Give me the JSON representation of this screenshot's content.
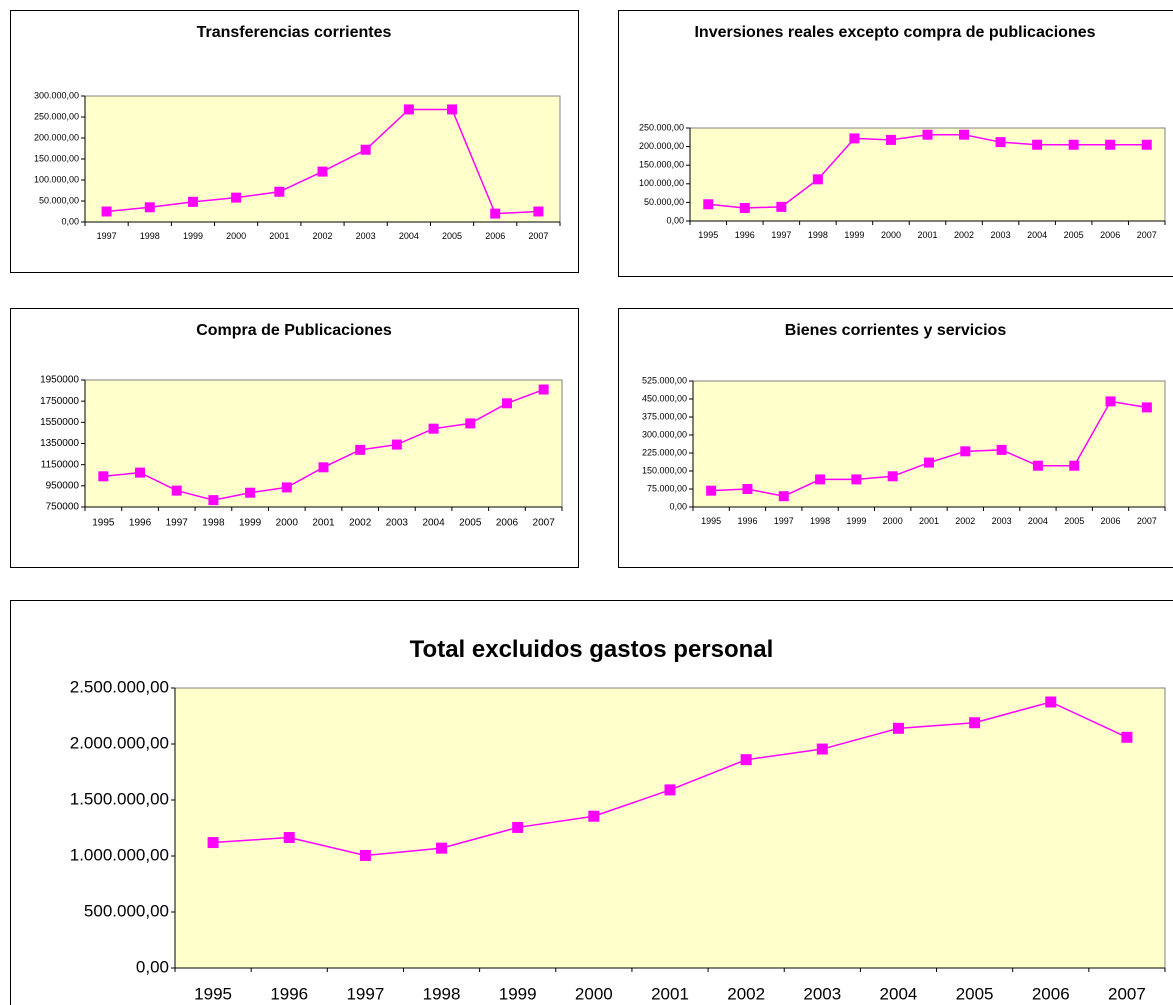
{
  "chart_data": [
    {
      "type": "line",
      "title": "Transferencias corrientes",
      "categories": [
        "1997",
        "1998",
        "1999",
        "2000",
        "2001",
        "2002",
        "2003",
        "2004",
        "2005",
        "2006",
        "2007"
      ],
      "series": [
        {
          "color": "#ff00ff",
          "values": [
            25000,
            35000,
            48000,
            58000,
            72000,
            120000,
            172000,
            268000,
            268000,
            20000,
            25000
          ]
        }
      ],
      "ylim": [
        0,
        300000
      ],
      "yticks": [
        {
          "value": 0,
          "label": "0,00"
        },
        {
          "value": 50000,
          "label": "50.000,00"
        },
        {
          "value": 100000,
          "label": "100.000,00"
        },
        {
          "value": 150000,
          "label": "150.000,00"
        },
        {
          "value": 200000,
          "label": "200.000,00"
        },
        {
          "value": 250000,
          "label": "250.000,00"
        },
        {
          "value": 300000,
          "label": "300.000,00"
        }
      ],
      "grid": false
    },
    {
      "type": "line",
      "title": "Inversiones reales excepto compra de publicaciones",
      "categories": [
        "1995",
        "1996",
        "1997",
        "1998",
        "1999",
        "2000",
        "2001",
        "2002",
        "2003",
        "2004",
        "2005",
        "2006",
        "2007"
      ],
      "series": [
        {
          "color": "#ff00ff",
          "values": [
            45000,
            35000,
            38000,
            112000,
            222000,
            218000,
            232000,
            232000,
            212000,
            205000,
            205000,
            205000,
            205000
          ]
        }
      ],
      "ylim": [
        0,
        250000
      ],
      "yticks": [
        {
          "value": 0,
          "label": "0,00"
        },
        {
          "value": 50000,
          "label": "50.000,00"
        },
        {
          "value": 100000,
          "label": "100.000,00"
        },
        {
          "value": 150000,
          "label": "150.000,00"
        },
        {
          "value": 200000,
          "label": "200.000,00"
        },
        {
          "value": 250000,
          "label": "250.000,00"
        }
      ],
      "grid": false
    },
    {
      "type": "line",
      "title": "Compra de Publicaciones",
      "categories": [
        "1995",
        "1996",
        "1997",
        "1998",
        "1999",
        "2000",
        "2001",
        "2002",
        "2003",
        "2004",
        "2005",
        "2006",
        "2007"
      ],
      "series": [
        {
          "color": "#ff00ff",
          "values": [
            1040000,
            1075000,
            905000,
            815000,
            885000,
            935000,
            1125000,
            1290000,
            1340000,
            1490000,
            1540000,
            1730000,
            1860000
          ]
        }
      ],
      "ylim": [
        750000,
        1950000
      ],
      "yticks": [
        750000,
        950000,
        1150000,
        1350000,
        1550000,
        1750000,
        1950000
      ],
      "grid": false
    },
    {
      "type": "line",
      "title": "Bienes corrientes y servicios",
      "categories": [
        "1995",
        "1996",
        "1997",
        "1998",
        "1999",
        "2000",
        "2001",
        "2002",
        "2003",
        "2004",
        "2005",
        "2006",
        "2007"
      ],
      "series": [
        {
          "color": "#ff00ff",
          "values": [
            68000,
            75000,
            45000,
            115000,
            115000,
            128000,
            185000,
            232000,
            238000,
            172000,
            172000,
            440000,
            415000
          ]
        }
      ],
      "ylim": [
        0,
        525000
      ],
      "yticks": [
        {
          "value": 0,
          "label": "0,00"
        },
        {
          "value": 75000,
          "label": "75.000,00"
        },
        {
          "value": 150000,
          "label": "150.000,00"
        },
        {
          "value": 225000,
          "label": "225.000,00"
        },
        {
          "value": 300000,
          "label": "300.000,00"
        },
        {
          "value": 375000,
          "label": "375.000,00"
        },
        {
          "value": 450000,
          "label": "450.000,00"
        },
        {
          "value": 525000,
          "label": "525.000,00"
        }
      ],
      "grid": false
    },
    {
      "type": "line",
      "title": "Total excluidos gastos personal",
      "categories": [
        "1995",
        "1996",
        "1997",
        "1998",
        "1999",
        "2000",
        "2001",
        "2002",
        "2003",
        "2004",
        "2005",
        "2006",
        "2007"
      ],
      "series": [
        {
          "color": "#ff00ff",
          "values": [
            1120000,
            1165000,
            1005000,
            1070000,
            1255000,
            1355000,
            1590000,
            1860000,
            1955000,
            2140000,
            2190000,
            2375000,
            2060000
          ]
        }
      ],
      "ylim": [
        0,
        2500000
      ],
      "yticks": [
        {
          "value": 0,
          "label": "0,00"
        },
        {
          "value": 500000,
          "label": "500.000,00"
        },
        {
          "value": 1000000,
          "label": "1.000.000,00"
        },
        {
          "value": 1500000,
          "label": "1.500.000,00"
        },
        {
          "value": 2000000,
          "label": "2.000.000,00"
        },
        {
          "value": 2500000,
          "label": "2.500.000,00"
        }
      ],
      "grid": false
    }
  ]
}
